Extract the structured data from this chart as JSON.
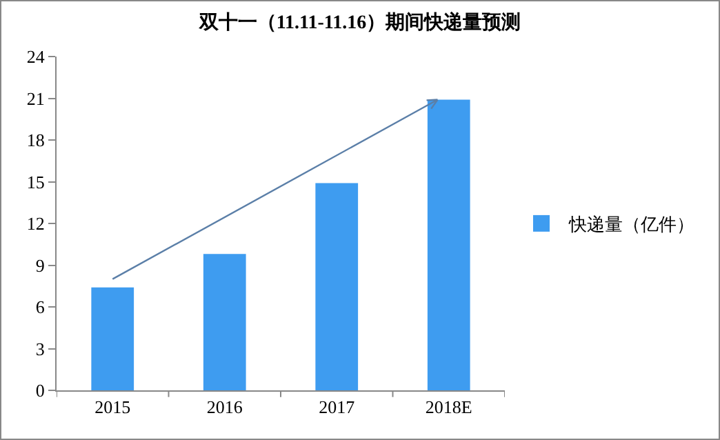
{
  "chart_data": {
    "type": "bar",
    "title": "双十一（11.11-11.16）期间快递量预测",
    "categories": [
      "2015",
      "2016",
      "2017",
      "2018E"
    ],
    "series": [
      {
        "name": "快递量（亿件）",
        "color": "#3e9cf0",
        "values": [
          7.4,
          9.8,
          14.9,
          20.9
        ]
      }
    ],
    "ylim": [
      0,
      24
    ],
    "yticks": [
      0,
      3,
      6,
      9,
      12,
      15,
      18,
      21,
      24
    ],
    "grid": false,
    "legend": "right"
  }
}
